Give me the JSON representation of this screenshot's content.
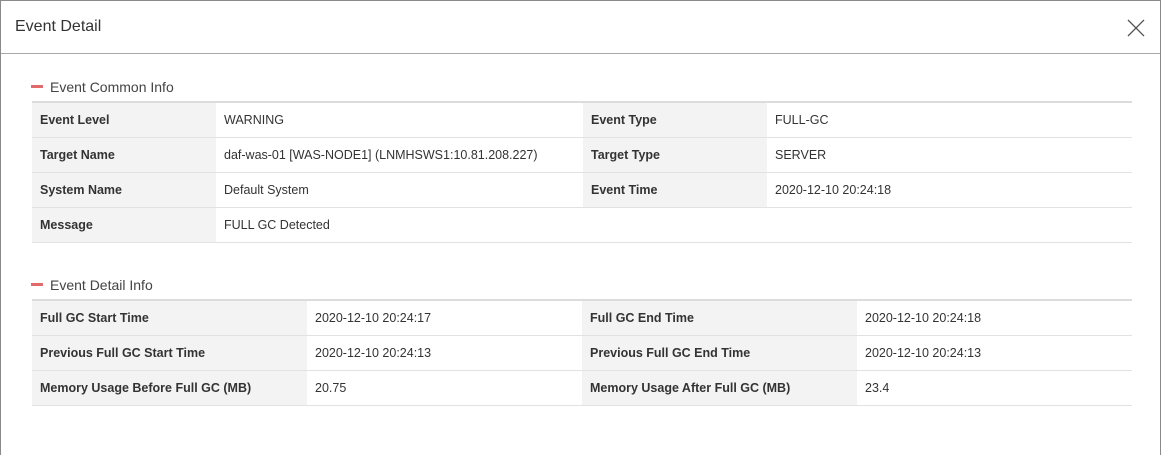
{
  "dialog": {
    "title": "Event Detail",
    "close_icon": "close-icon"
  },
  "common": {
    "title": "Event Common Info",
    "rows": [
      {
        "l1": "Event Level",
        "v1": "WARNING",
        "l2": "Event Type",
        "v2": "FULL-GC"
      },
      {
        "l1": "Target Name",
        "v1": "daf-was-01 [WAS-NODE1] (LNMHSWS1:10.81.208.227)",
        "l2": "Target Type",
        "v2": "SERVER"
      },
      {
        "l1": "System Name",
        "v1": "Default System",
        "l2": "Event Time",
        "v2": "2020-12-10 20:24:18"
      }
    ],
    "message": {
      "label": "Message",
      "value": "FULL GC Detected"
    }
  },
  "detail": {
    "title": "Event Detail Info",
    "rows": [
      {
        "l1": "Full GC Start Time",
        "v1": "2020-12-10 20:24:17",
        "l2": "Full GC End Time",
        "v2": "2020-12-10 20:24:18"
      },
      {
        "l1": "Previous Full GC Start Time",
        "v1": "2020-12-10 20:24:13",
        "l2": "Previous Full GC End Time",
        "v2": "2020-12-10 20:24:13"
      },
      {
        "l1": "Memory Usage Before Full GC (MB)",
        "v1": "20.75",
        "l2": "Memory Usage After Full GC (MB)",
        "v2": "23.4"
      }
    ]
  },
  "colors": {
    "accent": "#e26a6a",
    "label_bg": "#f3f3f3"
  }
}
